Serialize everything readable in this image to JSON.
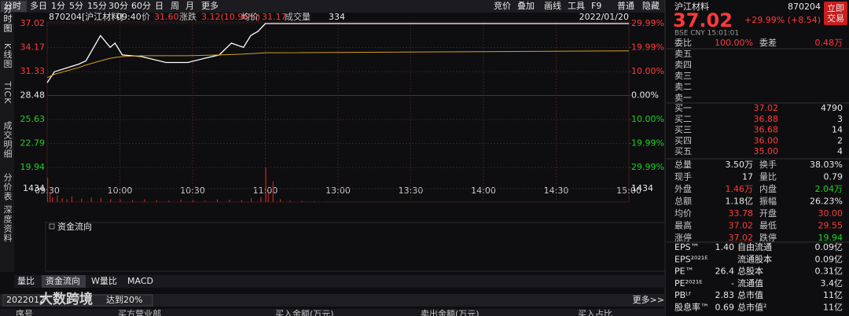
{
  "toolbar": {
    "left": [
      "分时",
      "多日",
      "1分",
      "5分",
      "15分",
      "30分",
      "60分",
      "日",
      "周",
      "月",
      "更多"
    ],
    "right": [
      "竞价",
      "叠加",
      "画线",
      "工具",
      "F9",
      "普通",
      "隐藏"
    ]
  },
  "side_tabs": [
    "分时图",
    "K线图",
    "TICK",
    "成交明细",
    "分价表",
    "深度资料"
  ],
  "chart_header": {
    "code_name": "870204[沪江材料]",
    "time": "09:40",
    "price_label": "价",
    "price": "31.60",
    "change_label": "涨跌",
    "change": "3.12(10.96%)",
    "avg_label": "均价",
    "avg": "31.17",
    "volume_label": "成交量",
    "volume": "334",
    "date": "2022/01/20"
  },
  "chart_data": {
    "type": "line",
    "x": [
      0,
      3,
      13,
      16,
      22,
      26,
      28,
      31,
      39,
      49,
      58,
      65,
      71,
      76,
      81,
      84,
      87,
      90,
      240
    ],
    "series": [
      {
        "name": "价",
        "color": "#ffffff",
        "values": [
          30.0,
          31.3,
          32.2,
          32.6,
          35.6,
          34.2,
          34.7,
          33.3,
          33.1,
          32.4,
          32.4,
          32.9,
          33.3,
          34.7,
          34.2,
          35.6,
          36.1,
          37.02,
          37.02
        ]
      },
      {
        "name": "均价",
        "color": "#d4a020",
        "values": [
          30.6,
          31.0,
          31.8,
          32.1,
          32.6,
          32.9,
          33.0,
          33.1,
          33.2,
          33.2,
          33.2,
          33.25,
          33.3,
          33.35,
          33.4,
          33.45,
          33.5,
          33.55,
          33.78
        ]
      }
    ],
    "xlim": [
      0,
      240
    ],
    "xticks": [
      {
        "value": 0,
        "label": "09:30"
      },
      {
        "value": 30,
        "label": "10:00"
      },
      {
        "value": 60,
        "label": "10:30"
      },
      {
        "value": 90,
        "label": "11:00"
      },
      {
        "value": 120,
        "label": "13:00"
      },
      {
        "value": 150,
        "label": "13:30"
      },
      {
        "value": 180,
        "label": "14:00"
      },
      {
        "value": 210,
        "label": "14:30"
      },
      {
        "value": 240,
        "label": "15:00"
      }
    ],
    "ylim": [
      19.94,
      37.02
    ],
    "yticks": [
      37.02,
      34.17,
      31.33,
      28.48,
      25.63,
      22.79,
      19.94
    ],
    "y2lim": [
      -29.99,
      29.99
    ],
    "y2ticks": [
      {
        "value": 29.99,
        "label": "29.99%"
      },
      {
        "value": 19.99,
        "label": "19.99%"
      },
      {
        "value": 10,
        "label": "10.00%"
      },
      {
        "value": 0,
        "label": "0.00%"
      },
      {
        "value": -10,
        "label": "10.00%"
      },
      {
        "value": -19.99,
        "label": "19.99%"
      },
      {
        "value": -29.99,
        "label": "29.99%"
      }
    ],
    "volume": {
      "color": "#c82020",
      "x": [
        0,
        1,
        2,
        4,
        6,
        8,
        10,
        14,
        18,
        22,
        26,
        30,
        35,
        40,
        45,
        50,
        55,
        60,
        65,
        70,
        75,
        80,
        84,
        88,
        90,
        91,
        93,
        96,
        100,
        105,
        110,
        115
      ],
      "values": [
        2600,
        900,
        500,
        700,
        400,
        300,
        600,
        350,
        500,
        450,
        300,
        250,
        200,
        300,
        200,
        150,
        250,
        200,
        150,
        300,
        250,
        200,
        400,
        500,
        3700,
        900,
        2200,
        300,
        150,
        100,
        80,
        60
      ],
      "ylim": [
        0,
        4302
      ],
      "yticks": [
        1434
      ]
    },
    "grid": true
  },
  "fund_flow_title": "资金流向",
  "bottom_tabs": [
    "量比",
    "资金流向",
    "W量比",
    "MACD"
  ],
  "filter": {
    "text": "2022012",
    "rest": "达到20%",
    "more": "更多>>"
  },
  "watermark": "大数跨境",
  "table_header": [
    "序号",
    "买方营业部",
    "买入金额(万元)",
    "卖出金额(万元)",
    "买入占比"
  ],
  "quote": {
    "name": "沪江材料",
    "code": "870204",
    "price": "37.02",
    "change": "+29.99% (+8.54)",
    "trade_button": [
      "立即",
      "交易"
    ],
    "market": "BSE CNY 15:01:01",
    "ratio": [
      "委比",
      "100.00%",
      "委差",
      "0.48万"
    ],
    "sell": [
      [
        "卖五"
      ],
      [
        "卖四"
      ],
      [
        "卖三"
      ],
      [
        "卖二"
      ],
      [
        "卖一"
      ]
    ],
    "buy": [
      [
        "买一",
        "37.02",
        "4790"
      ],
      [
        "买二",
        "36.88",
        "3"
      ],
      [
        "买三",
        "36.68",
        "14"
      ],
      [
        "买四",
        "36.00",
        "2"
      ],
      [
        "买五",
        "35.00",
        "4"
      ]
    ],
    "stats": [
      [
        "总量",
        "3.50万",
        "换手",
        "38.03%"
      ],
      [
        "现手",
        "17",
        "量比",
        "0.79"
      ],
      [
        "外盘",
        "1.46万",
        "内盘",
        "2.04万"
      ],
      [
        "总额",
        "1.18亿",
        "振幅",
        "26.23%"
      ],
      [
        "均价",
        "33.78",
        "开盘",
        "30.00"
      ],
      [
        "最高",
        "37.02",
        "最低",
        "29.55"
      ],
      [
        "涨停",
        "37.02",
        "跌停",
        "19.94"
      ]
    ],
    "fundamentals": [
      [
        "EPS™",
        "1.40",
        "自由流通",
        "0.09亿"
      ],
      [
        "EPS²⁰²¹ᴱ",
        "",
        "流通股本",
        "0.09亿"
      ],
      [
        "PE™",
        "26.4",
        "总股本",
        "0.31亿"
      ],
      [
        "PE²⁰²¹ᴱ",
        "-",
        "流通值",
        "3.4亿"
      ],
      [
        "PBᴸᶠ",
        "2.83",
        "总市值",
        "11亿"
      ],
      [
        "股息率™",
        "0.69",
        "总市值²",
        "11亿"
      ]
    ]
  }
}
